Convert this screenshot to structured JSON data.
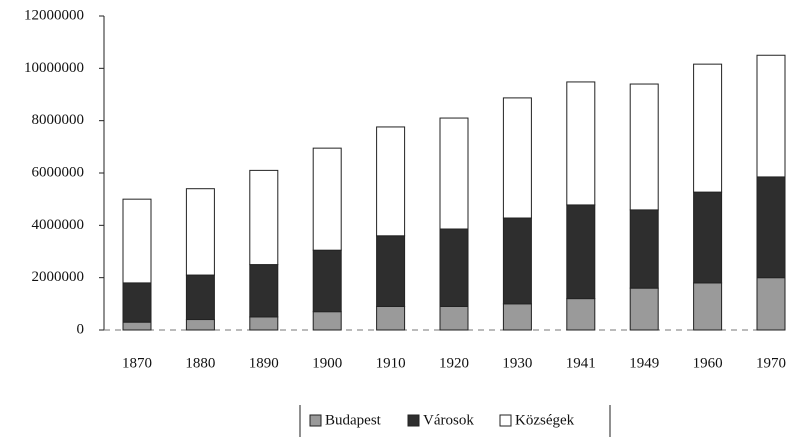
{
  "chart_data": {
    "type": "stacked_bar",
    "categories": [
      "1870",
      "1880",
      "1890",
      "1900",
      "1910",
      "1920",
      "1930",
      "1941",
      "1949",
      "1960",
      "1970"
    ],
    "series": [
      {
        "name": "Budapest",
        "color": "#9a9a9a",
        "values": [
          300000,
          400000,
          500000,
          700000,
          900000,
          900000,
          1000000,
          1200000,
          1600000,
          1800000,
          2000000
        ]
      },
      {
        "name": "Városok",
        "color": "#2e2e2e",
        "values": [
          1500000,
          1700000,
          2000000,
          2350000,
          2700000,
          2960000,
          3280000,
          3580000,
          2990000,
          3470000,
          3850000
        ]
      },
      {
        "name": "Községek",
        "color": "#ffffff",
        "values": [
          3200000,
          3300000,
          3600000,
          3900000,
          4160000,
          4240000,
          4590000,
          4700000,
          4810000,
          4890000,
          4650000
        ]
      }
    ],
    "ylim": [
      0,
      12000000
    ],
    "yticks": [
      0,
      2000000,
      4000000,
      6000000,
      8000000,
      10000000,
      12000000
    ],
    "legend": "bottom"
  }
}
